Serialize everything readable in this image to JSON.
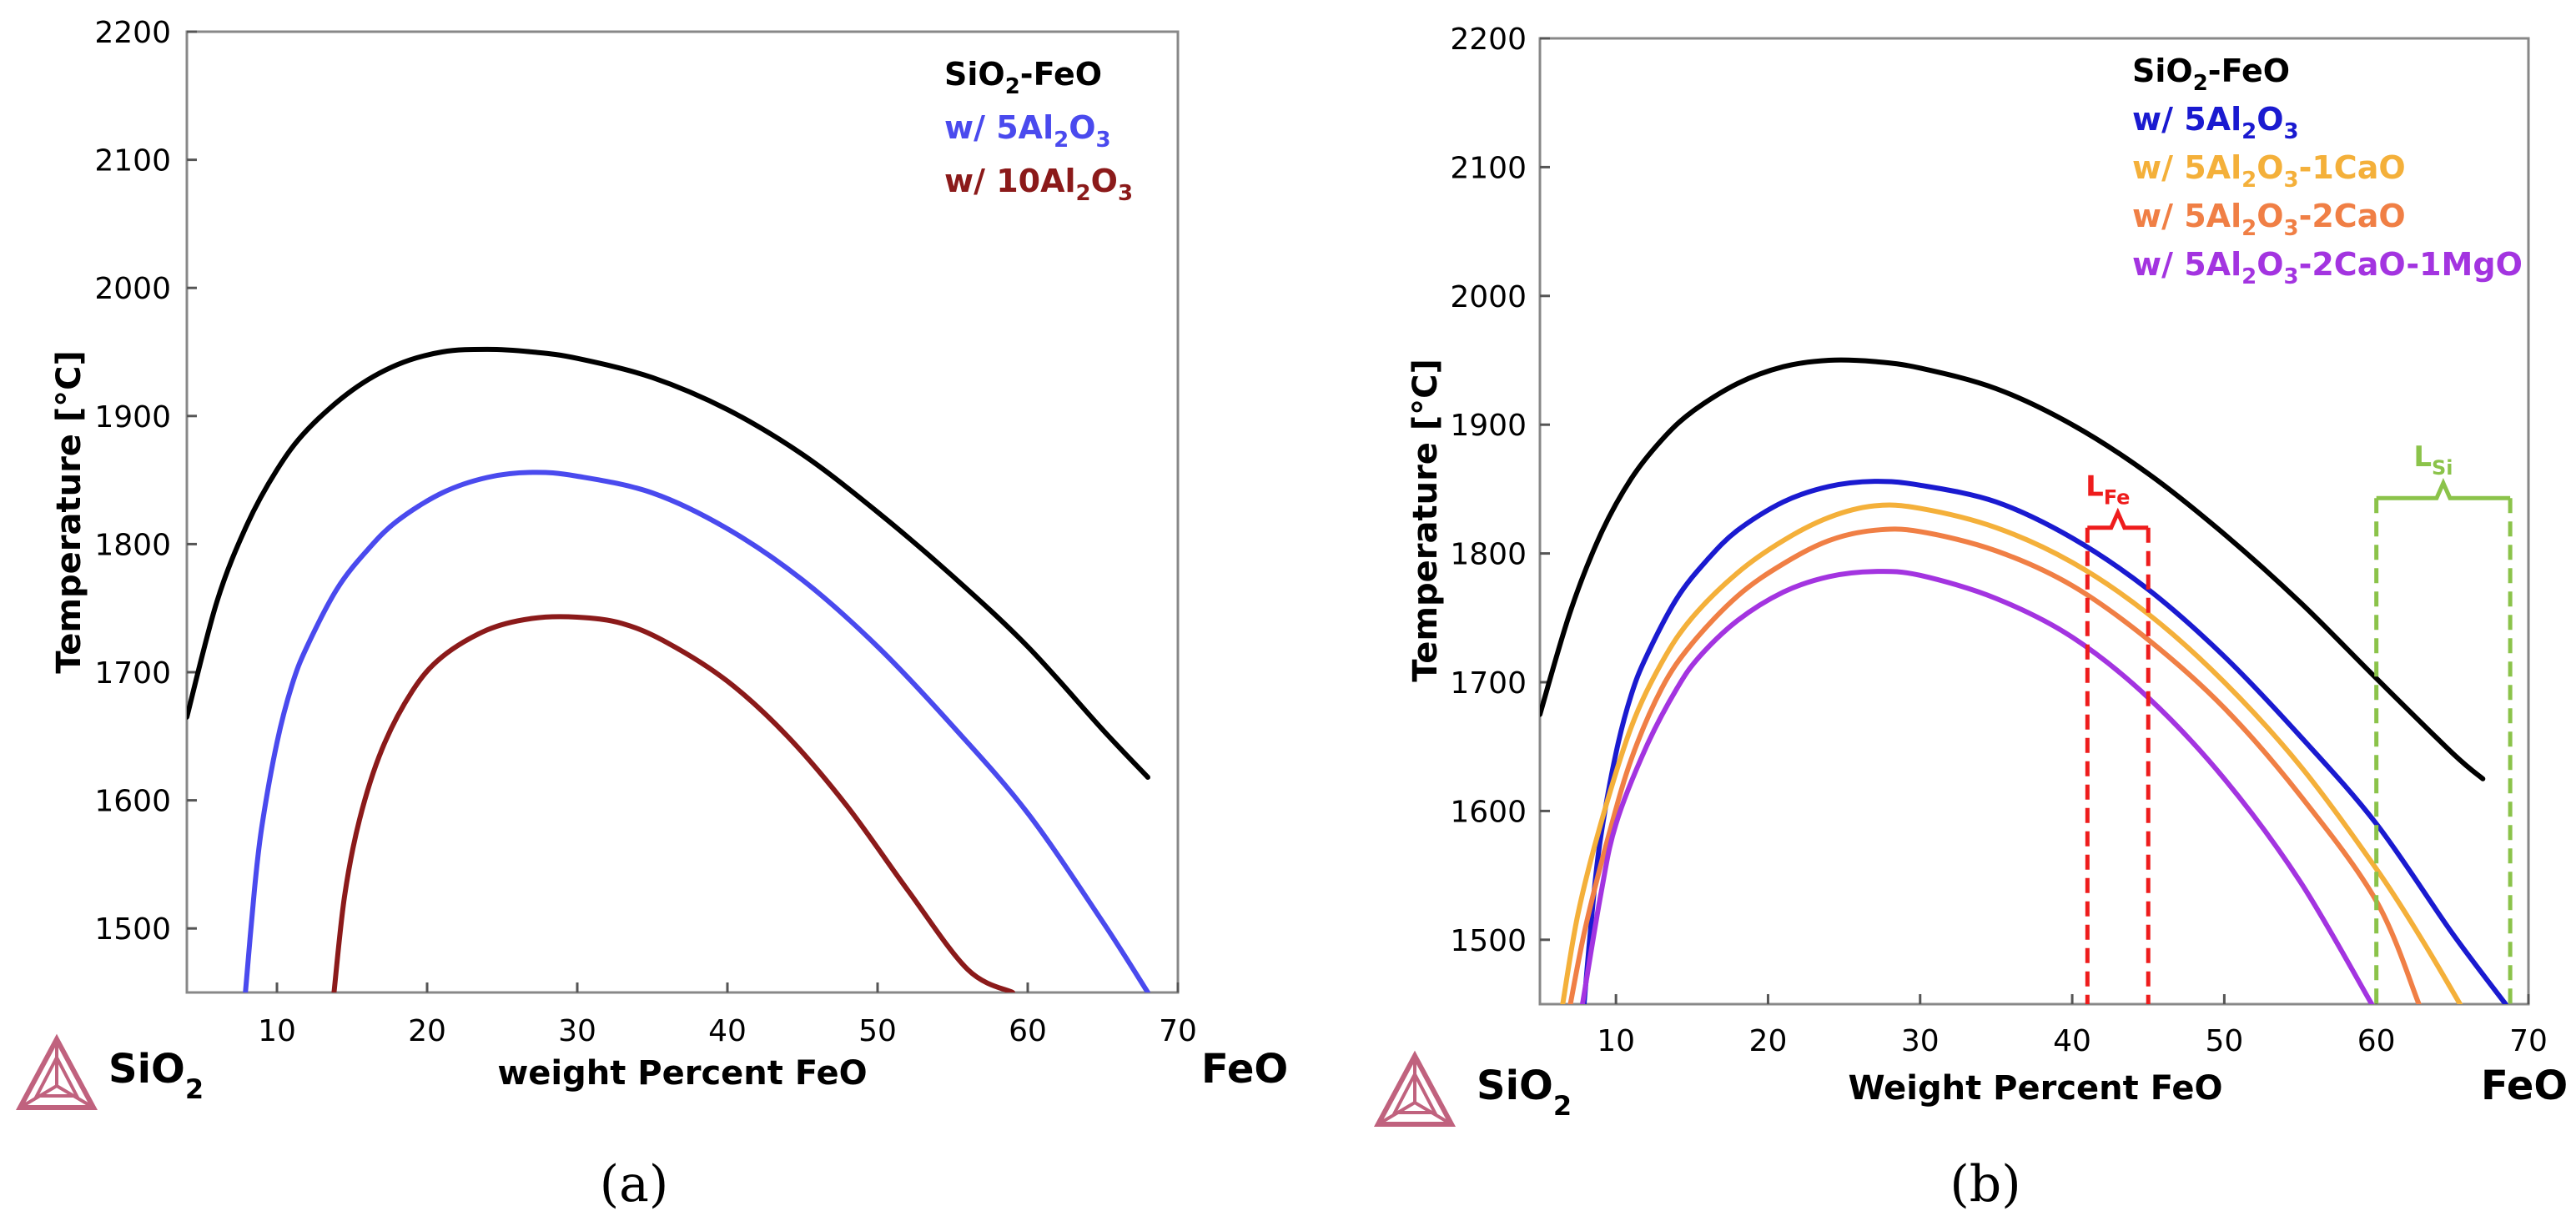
{
  "chart_data": [
    {
      "type": "line",
      "panel_label": "(a)",
      "xlabel": "weight Percent FeO",
      "ylabel": "Temperature [°C]",
      "xlim": [
        4,
        70
      ],
      "ylim": [
        1450,
        2200
      ],
      "xticks": [
        10,
        20,
        30,
        40,
        50,
        60,
        70
      ],
      "yticks": [
        1500,
        1600,
        1700,
        1800,
        1900,
        2000,
        2100,
        2200
      ],
      "grid": false,
      "legend_position": "top-right",
      "endpoint_left": {
        "base": "SiO",
        "sub": "2"
      },
      "endpoint_right": {
        "base": "FeO",
        "sub": ""
      },
      "series": [
        {
          "legend": [
            "SiO",
            "2",
            "-FeO"
          ],
          "color": "#000000",
          "x": [
            4,
            6,
            8,
            10,
            12,
            15,
            18,
            21,
            24,
            27,
            30,
            35,
            40,
            45,
            50,
            55,
            60,
            65,
            68
          ],
          "y": [
            1665,
            1755,
            1815,
            1858,
            1889,
            1920,
            1940,
            1950,
            1952,
            1950,
            1945,
            1930,
            1905,
            1870,
            1825,
            1775,
            1720,
            1655,
            1618
          ]
        },
        {
          "legend": [
            "w/ 5Al",
            "2",
            "O",
            "3",
            ""
          ],
          "color": "#4a4aee",
          "x": [
            7.9,
            8.5,
            9,
            10,
            11,
            12,
            14,
            16,
            18,
            21,
            24,
            27,
            30,
            35,
            40,
            45,
            50,
            55,
            60,
            65,
            68
          ],
          "y": [
            1450,
            1530,
            1580,
            1645,
            1690,
            1720,
            1765,
            1795,
            1818,
            1840,
            1852,
            1856,
            1853,
            1840,
            1812,
            1772,
            1720,
            1658,
            1590,
            1505,
            1450
          ]
        },
        {
          "legend": [
            "w/ 10Al",
            "2",
            "O",
            "3",
            ""
          ],
          "color": "#8b1a1a",
          "x": [
            13.8,
            14.5,
            15.5,
            17,
            19,
            21,
            24,
            27,
            30,
            33,
            36,
            40,
            44,
            48,
            52,
            56,
            59
          ],
          "y": [
            1450,
            1525,
            1585,
            1640,
            1685,
            1712,
            1733,
            1742,
            1743,
            1738,
            1723,
            1693,
            1650,
            1595,
            1530,
            1468,
            1450
          ]
        }
      ]
    },
    {
      "type": "line",
      "panel_label": "(b)",
      "xlabel": "Weight Percent FeO",
      "ylabel": "Temperature [°C]",
      "xlim": [
        5,
        70
      ],
      "ylim": [
        1450,
        2200
      ],
      "xticks": [
        10,
        20,
        30,
        40,
        50,
        60,
        70
      ],
      "yticks": [
        1500,
        1600,
        1700,
        1800,
        1900,
        2000,
        2100,
        2200
      ],
      "grid": false,
      "legend_position": "top-right",
      "endpoint_left": {
        "base": "SiO",
        "sub": "2"
      },
      "endpoint_right": {
        "base": "FeO",
        "sub": ""
      },
      "series": [
        {
          "legend": [
            "SiO",
            "2",
            "-FeO"
          ],
          "color": "#000000",
          "x": [
            5,
            7,
            9,
            11,
            13,
            15,
            18,
            21,
            24,
            27,
            30,
            35,
            40,
            45,
            50,
            55,
            60,
            65,
            67
          ],
          "y": [
            1675,
            1755,
            1815,
            1858,
            1888,
            1910,
            1932,
            1945,
            1950,
            1949,
            1944,
            1928,
            1900,
            1862,
            1815,
            1762,
            1703,
            1645,
            1625
          ]
        },
        {
          "legend": [
            "w/ 5Al",
            "2",
            "O",
            "3",
            ""
          ],
          "color": "#1a1ad0",
          "x": [
            7.9,
            8.5,
            9,
            10,
            11,
            12,
            14,
            16,
            18,
            21,
            24,
            27,
            30,
            35,
            40,
            45,
            50,
            55,
            60,
            65,
            68.5
          ],
          "y": [
            1450,
            1530,
            1580,
            1645,
            1690,
            1720,
            1765,
            1795,
            1818,
            1840,
            1852,
            1856,
            1853,
            1840,
            1812,
            1772,
            1720,
            1658,
            1590,
            1505,
            1450
          ]
        },
        {
          "legend": [
            "w/ 5Al",
            "2",
            "O",
            "3",
            "-1CaO"
          ],
          "color": "#f4b03a",
          "x": [
            6.5,
            7.5,
            9,
            11,
            13,
            15,
            18,
            21,
            24,
            27,
            30,
            35,
            40,
            45,
            50,
            55,
            60,
            63,
            65.5
          ],
          "y": [
            1450,
            1520,
            1590,
            1665,
            1715,
            1750,
            1785,
            1810,
            1828,
            1837,
            1835,
            1820,
            1793,
            1753,
            1700,
            1635,
            1555,
            1500,
            1450
          ]
        },
        {
          "legend": [
            "w/ 5Al",
            "2",
            "O",
            "3",
            "-2CaO"
          ],
          "color": "#f07f45",
          "x": [
            7,
            8,
            9.5,
            11,
            13,
            15,
            18,
            21,
            24,
            27,
            30,
            35,
            40,
            45,
            50,
            55,
            60,
            62.8
          ],
          "y": [
            1450,
            1510,
            1580,
            1640,
            1695,
            1730,
            1767,
            1792,
            1810,
            1818,
            1817,
            1802,
            1775,
            1733,
            1680,
            1612,
            1530,
            1450
          ]
        },
        {
          "legend": [
            "w/ 5Al",
            "2",
            "O",
            "3",
            "-2CaO-1MgO"
          ],
          "color": "#a334e0",
          "x": [
            7.8,
            9,
            10,
            12,
            14,
            15.5,
            18,
            21,
            24,
            27,
            30,
            35,
            40,
            45,
            50,
            55,
            59.7
          ],
          "y": [
            1450,
            1535,
            1590,
            1650,
            1695,
            1720,
            1748,
            1770,
            1782,
            1786,
            1783,
            1765,
            1735,
            1688,
            1625,
            1545,
            1450
          ]
        }
      ],
      "annotations": [
        {
          "label": "L",
          "sub": "Fe",
          "color": "#ee1c1c",
          "x_start": 41,
          "x_end": 45,
          "y_top": 1820
        },
        {
          "label": "L",
          "sub": "Si",
          "color": "#8bc34a",
          "x_start": 60,
          "x_end": 68.8,
          "y_top": 1843
        }
      ]
    }
  ]
}
